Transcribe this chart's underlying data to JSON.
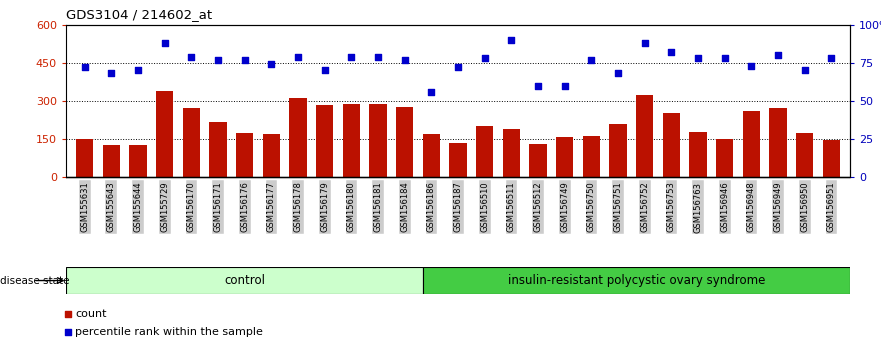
{
  "title": "GDS3104 / 214602_at",
  "samples": [
    "GSM155631",
    "GSM155643",
    "GSM155644",
    "GSM155729",
    "GSM156170",
    "GSM156171",
    "GSM156176",
    "GSM156177",
    "GSM156178",
    "GSM156179",
    "GSM156180",
    "GSM156181",
    "GSM156184",
    "GSM156186",
    "GSM156187",
    "GSM156510",
    "GSM156511",
    "GSM156512",
    "GSM156749",
    "GSM156750",
    "GSM156751",
    "GSM156752",
    "GSM156753",
    "GSM156763",
    "GSM156946",
    "GSM156948",
    "GSM156949",
    "GSM156950",
    "GSM156951"
  ],
  "counts": [
    150,
    128,
    128,
    340,
    272,
    215,
    175,
    168,
    310,
    285,
    288,
    288,
    275,
    168,
    135,
    200,
    188,
    132,
    158,
    162,
    208,
    325,
    252,
    178,
    148,
    262,
    272,
    175,
    145
  ],
  "percentiles_pct": [
    72,
    68,
    70,
    88,
    79,
    77,
    77,
    74,
    79,
    70,
    79,
    79,
    77,
    56,
    72,
    78,
    90,
    60,
    60,
    77,
    68,
    88,
    82,
    78,
    78,
    73,
    80,
    70,
    78
  ],
  "control_count": 13,
  "ylim_left": [
    0,
    600
  ],
  "ylim_right": [
    0,
    100
  ],
  "yticks_left": [
    0,
    150,
    300,
    450,
    600
  ],
  "yticks_right": [
    0,
    25,
    50,
    75,
    100
  ],
  "bar_color": "#bb1100",
  "dot_color": "#0000cc",
  "control_label": "control",
  "disease_label": "insulin-resistant polycystic ovary syndrome",
  "legend_bar": "count",
  "legend_dot": "percentile rank within the sample",
  "disease_state_label": "disease state",
  "bg_color": "#ffffff",
  "axis_color_left": "#cc2200",
  "axis_color_right": "#0000bb",
  "control_bg": "#ccffcc",
  "disease_bg": "#44cc44",
  "xtick_bg": "#cccccc"
}
